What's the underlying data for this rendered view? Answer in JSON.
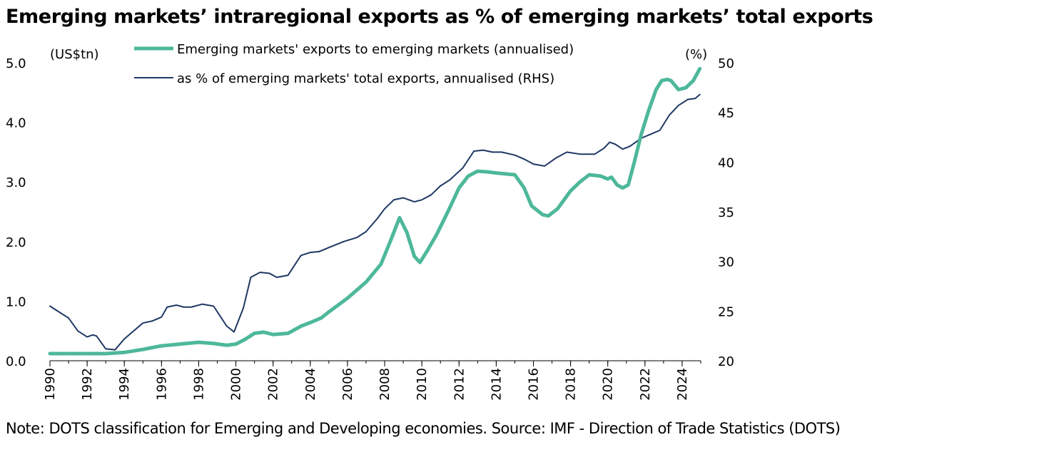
{
  "title": "Emerging markets’ intraregional exports as % of emerging markets’ total exports",
  "note": "Note: DOTS classification for Emerging and Developing economies. Source: IMF - Direction of Trade Statistics (DOTS)",
  "colors": {
    "series1": "#4db89a",
    "series2": "#1f3864",
    "text": "#000000"
  },
  "chart_data": {
    "type": "line",
    "xlabel": "",
    "xlim": [
      1990,
      2025
    ],
    "x_ticks": [
      "1990",
      "1992",
      "1994",
      "1996",
      "1998",
      "2000",
      "2002",
      "2004",
      "2006",
      "2008",
      "2010",
      "2012",
      "2014",
      "2016",
      "2018",
      "2020",
      "2022",
      "2024"
    ],
    "y_left": {
      "label": "(US$tn)",
      "lim": [
        0,
        5
      ],
      "ticks": [
        "0.0",
        "1.0",
        "2.0",
        "3.0",
        "4.0",
        "5.0"
      ]
    },
    "y_right": {
      "label": "(%)",
      "lim": [
        20,
        50
      ],
      "ticks": [
        "20",
        "25",
        "30",
        "35",
        "40",
        "45",
        "50"
      ]
    },
    "grid": false,
    "legend_position": "top",
    "series": [
      {
        "name": "Emerging markets' exports to emerging markets (annualised)",
        "axis": "left",
        "points": [
          [
            1990,
            0.12
          ],
          [
            1991,
            0.12
          ],
          [
            1992,
            0.12
          ],
          [
            1993,
            0.12
          ],
          [
            1994,
            0.14
          ],
          [
            1995,
            0.19
          ],
          [
            1996,
            0.25
          ],
          [
            1997,
            0.28
          ],
          [
            1998,
            0.31
          ],
          [
            1998.8,
            0.29
          ],
          [
            1999.5,
            0.26
          ],
          [
            2000,
            0.28
          ],
          [
            2000.5,
            0.36
          ],
          [
            2001,
            0.46
          ],
          [
            2001.5,
            0.48
          ],
          [
            2002,
            0.44
          ],
          [
            2002.8,
            0.46
          ],
          [
            2003.5,
            0.58
          ],
          [
            2004,
            0.64
          ],
          [
            2004.6,
            0.72
          ],
          [
            2005,
            0.82
          ],
          [
            2006,
            1.05
          ],
          [
            2007,
            1.32
          ],
          [
            2007.8,
            1.62
          ],
          [
            2008.3,
            2.0
          ],
          [
            2008.8,
            2.4
          ],
          [
            2009.2,
            2.15
          ],
          [
            2009.6,
            1.75
          ],
          [
            2009.9,
            1.65
          ],
          [
            2010.3,
            1.85
          ],
          [
            2010.8,
            2.12
          ],
          [
            2011.4,
            2.5
          ],
          [
            2012,
            2.9
          ],
          [
            2012.5,
            3.1
          ],
          [
            2013,
            3.18
          ],
          [
            2013.5,
            3.17
          ],
          [
            2014,
            3.15
          ],
          [
            2015,
            3.12
          ],
          [
            2015.5,
            2.9
          ],
          [
            2015.9,
            2.6
          ],
          [
            2016.5,
            2.45
          ],
          [
            2016.8,
            2.43
          ],
          [
            2017.3,
            2.55
          ],
          [
            2018,
            2.85
          ],
          [
            2018.5,
            3.0
          ],
          [
            2019,
            3.12
          ],
          [
            2019.6,
            3.1
          ],
          [
            2020,
            3.05
          ],
          [
            2020.2,
            3.08
          ],
          [
            2020.5,
            2.95
          ],
          [
            2020.8,
            2.9
          ],
          [
            2021.1,
            2.95
          ],
          [
            2021.4,
            3.3
          ],
          [
            2021.8,
            3.8
          ],
          [
            2022.2,
            4.2
          ],
          [
            2022.6,
            4.55
          ],
          [
            2022.9,
            4.7
          ],
          [
            2023.2,
            4.72
          ],
          [
            2023.4,
            4.7
          ],
          [
            2023.8,
            4.55
          ],
          [
            2024.2,
            4.58
          ],
          [
            2024.6,
            4.7
          ],
          [
            2024.95,
            4.9
          ]
        ]
      },
      {
        "name": "as % of emerging markets' total exports, annualised (RHS)",
        "axis": "right",
        "points": [
          [
            1990,
            25.5
          ],
          [
            1990.5,
            24.9
          ],
          [
            1991,
            24.3
          ],
          [
            1991.5,
            23.0
          ],
          [
            1992,
            22.4
          ],
          [
            1992.3,
            22.6
          ],
          [
            1992.5,
            22.5
          ],
          [
            1993,
            21.2
          ],
          [
            1993.5,
            21.1
          ],
          [
            1994,
            22.2
          ],
          [
            1994.5,
            23.0
          ],
          [
            1995,
            23.8
          ],
          [
            1995.5,
            24.0
          ],
          [
            1996,
            24.4
          ],
          [
            1996.3,
            25.4
          ],
          [
            1996.8,
            25.6
          ],
          [
            1997.2,
            25.4
          ],
          [
            1997.6,
            25.4
          ],
          [
            1998.2,
            25.7
          ],
          [
            1998.8,
            25.5
          ],
          [
            1999.5,
            23.5
          ],
          [
            1999.9,
            22.9
          ],
          [
            2000.4,
            25.3
          ],
          [
            2000.8,
            28.4
          ],
          [
            2001.3,
            28.9
          ],
          [
            2001.8,
            28.8
          ],
          [
            2002.2,
            28.4
          ],
          [
            2002.8,
            28.6
          ],
          [
            2003.5,
            30.6
          ],
          [
            2004,
            30.9
          ],
          [
            2004.5,
            31.0
          ],
          [
            2005,
            31.4
          ],
          [
            2005.8,
            32.0
          ],
          [
            2006.5,
            32.4
          ],
          [
            2007,
            33.0
          ],
          [
            2007.6,
            34.3
          ],
          [
            2008,
            35.3
          ],
          [
            2008.5,
            36.2
          ],
          [
            2009,
            36.4
          ],
          [
            2009.6,
            36.0
          ],
          [
            2010,
            36.2
          ],
          [
            2010.5,
            36.7
          ],
          [
            2011,
            37.6
          ],
          [
            2011.5,
            38.2
          ],
          [
            2012.2,
            39.4
          ],
          [
            2012.8,
            41.1
          ],
          [
            2013.3,
            41.2
          ],
          [
            2013.8,
            41.0
          ],
          [
            2014.3,
            41.0
          ],
          [
            2015,
            40.7
          ],
          [
            2015.5,
            40.3
          ],
          [
            2016,
            39.8
          ],
          [
            2016.6,
            39.6
          ],
          [
            2017.2,
            40.4
          ],
          [
            2017.8,
            41.0
          ],
          [
            2018.5,
            40.8
          ],
          [
            2019.3,
            40.8
          ],
          [
            2019.8,
            41.4
          ],
          [
            2020.1,
            42.0
          ],
          [
            2020.4,
            41.8
          ],
          [
            2020.8,
            41.3
          ],
          [
            2021.2,
            41.6
          ],
          [
            2021.8,
            42.4
          ],
          [
            2022.3,
            42.8
          ],
          [
            2022.8,
            43.2
          ],
          [
            2023.3,
            44.7
          ],
          [
            2023.8,
            45.7
          ],
          [
            2024.3,
            46.3
          ],
          [
            2024.7,
            46.4
          ],
          [
            2024.95,
            46.8
          ]
        ]
      }
    ]
  }
}
